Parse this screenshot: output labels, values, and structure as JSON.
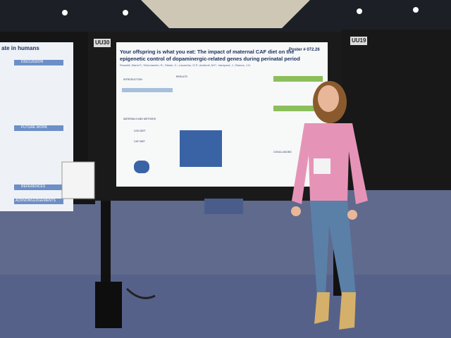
{
  "boards": [
    {
      "label": "UU30"
    },
    {
      "label": "UU19"
    }
  ],
  "poster": {
    "title_lines": [
      "Your offspring is what you eat: The impact of maternal CAF diet on the",
      "epigenetic control of dopaminergic-related genes during perinatal period"
    ],
    "number": "Poster # 072.26",
    "authors": "Rossetti, María F.; Schumacher, R.; Stoker, C.; Lazzarino, G.P.; Andreoli, M.F.; Varayoud, J.; Ramos, J.G.",
    "sections": [
      "INTRODUCTION",
      "RESULTS",
      "MATERIALS AND METHODS",
      "CON DIET",
      "CAF DIET",
      "CONCLUSIONS"
    ]
  },
  "left_poster": {
    "title_fragment": "ate in humans",
    "sections": [
      "DISCUSSION",
      "FUTURE WORK",
      "REFERENCES",
      "ACKNOWLEDGEMENTS"
    ]
  }
}
